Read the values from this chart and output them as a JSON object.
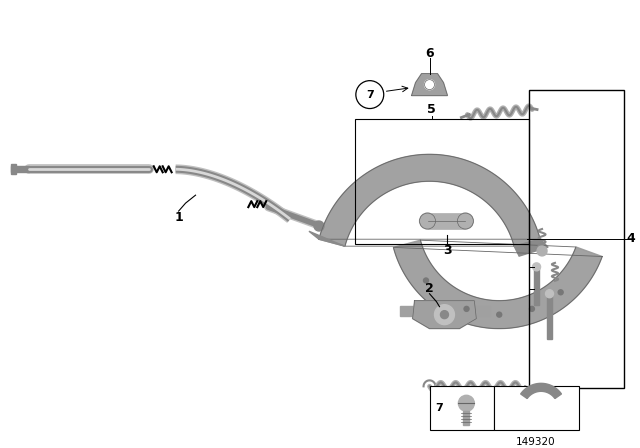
{
  "bg_color": "#ffffff",
  "part_number": "149320",
  "gray1": "#a0a0a0",
  "gray2": "#888888",
  "gray3": "#b0b0b0",
  "black": "#000000",
  "darkgray": "#666666"
}
